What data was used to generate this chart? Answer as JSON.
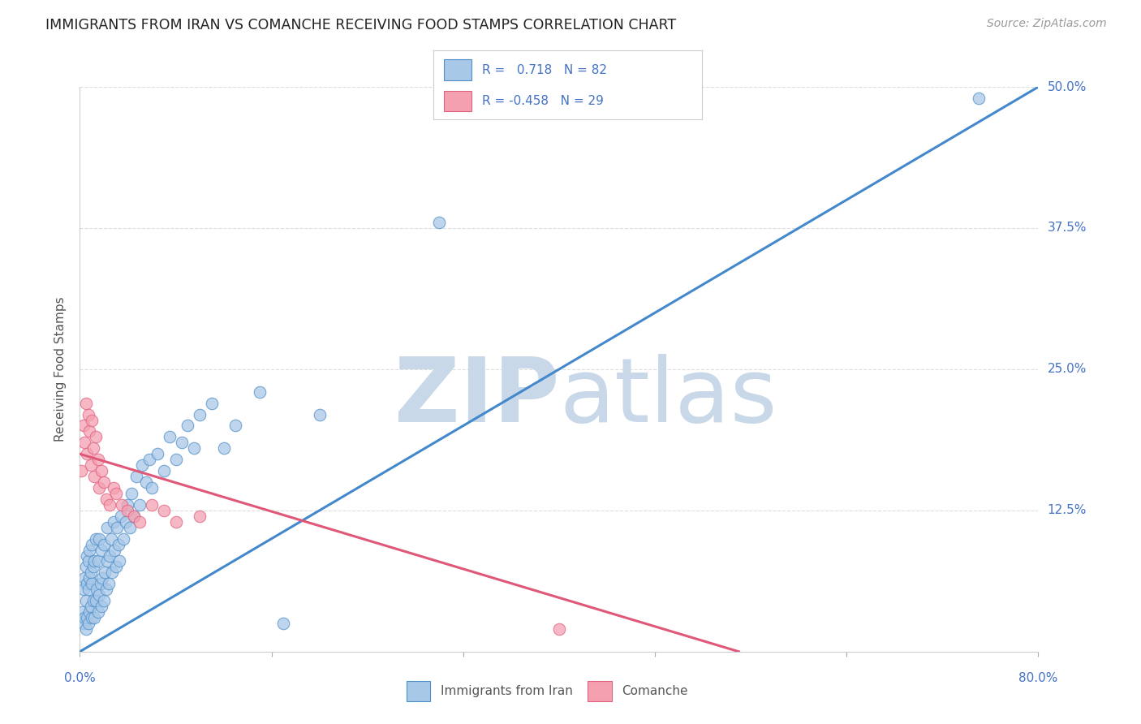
{
  "title": "IMMIGRANTS FROM IRAN VS COMANCHE RECEIVING FOOD STAMPS CORRELATION CHART",
  "source": "Source: ZipAtlas.com",
  "ylabel": "Receiving Food Stamps",
  "blue_color": "#a8c8e8",
  "pink_color": "#f4a0b0",
  "blue_edge_color": "#5090c8",
  "pink_edge_color": "#e06080",
  "blue_line_color": "#4488cc",
  "pink_line_color": "#e05878",
  "watermark_zip_color": "#c8d8e8",
  "watermark_atlas_color": "#c8d8e8",
  "background_color": "#ffffff",
  "title_color": "#222222",
  "axis_label_color": "#4472c4",
  "grid_color": "#dddddd",
  "blue_R": 0.718,
  "blue_N": 82,
  "pink_R": -0.458,
  "pink_N": 29,
  "xlim": [
    0.0,
    0.8
  ],
  "ylim": [
    0.0,
    0.5
  ],
  "xtick_positions": [
    0.0,
    0.16,
    0.32,
    0.48,
    0.64,
    0.8
  ],
  "ytick_positions": [
    0.0,
    0.125,
    0.25,
    0.375,
    0.5
  ],
  "blue_line_x0": 0.0,
  "blue_line_y0": 0.0,
  "blue_line_x1": 0.8,
  "blue_line_y1": 0.5,
  "pink_line_x0": 0.0,
  "pink_line_y0": 0.175,
  "pink_line_x1": 0.55,
  "pink_line_y1": 0.0,
  "blue_scatter_x": [
    0.002,
    0.003,
    0.003,
    0.004,
    0.004,
    0.005,
    0.005,
    0.005,
    0.006,
    0.006,
    0.006,
    0.007,
    0.007,
    0.007,
    0.008,
    0.008,
    0.008,
    0.009,
    0.009,
    0.01,
    0.01,
    0.01,
    0.011,
    0.011,
    0.012,
    0.012,
    0.013,
    0.013,
    0.014,
    0.015,
    0.015,
    0.016,
    0.016,
    0.017,
    0.018,
    0.018,
    0.019,
    0.02,
    0.02,
    0.021,
    0.022,
    0.023,
    0.023,
    0.024,
    0.025,
    0.026,
    0.027,
    0.028,
    0.029,
    0.03,
    0.031,
    0.032,
    0.033,
    0.034,
    0.036,
    0.038,
    0.04,
    0.042,
    0.043,
    0.045,
    0.047,
    0.05,
    0.052,
    0.055,
    0.058,
    0.06,
    0.065,
    0.07,
    0.075,
    0.08,
    0.085,
    0.09,
    0.095,
    0.1,
    0.11,
    0.12,
    0.13,
    0.15,
    0.17,
    0.2,
    0.3,
    0.75
  ],
  "blue_scatter_y": [
    0.035,
    0.025,
    0.055,
    0.03,
    0.065,
    0.02,
    0.045,
    0.075,
    0.03,
    0.06,
    0.085,
    0.025,
    0.055,
    0.08,
    0.035,
    0.065,
    0.09,
    0.04,
    0.07,
    0.03,
    0.06,
    0.095,
    0.045,
    0.075,
    0.03,
    0.08,
    0.045,
    0.1,
    0.055,
    0.035,
    0.08,
    0.05,
    0.1,
    0.06,
    0.04,
    0.09,
    0.065,
    0.045,
    0.095,
    0.07,
    0.055,
    0.11,
    0.08,
    0.06,
    0.085,
    0.1,
    0.07,
    0.115,
    0.09,
    0.075,
    0.11,
    0.095,
    0.08,
    0.12,
    0.1,
    0.115,
    0.13,
    0.11,
    0.14,
    0.12,
    0.155,
    0.13,
    0.165,
    0.15,
    0.17,
    0.145,
    0.175,
    0.16,
    0.19,
    0.17,
    0.185,
    0.2,
    0.18,
    0.21,
    0.22,
    0.18,
    0.2,
    0.23,
    0.025,
    0.21,
    0.38,
    0.49
  ],
  "pink_scatter_x": [
    0.001,
    0.003,
    0.004,
    0.005,
    0.006,
    0.007,
    0.008,
    0.009,
    0.01,
    0.011,
    0.012,
    0.013,
    0.015,
    0.016,
    0.018,
    0.02,
    0.022,
    0.025,
    0.028,
    0.03,
    0.035,
    0.04,
    0.045,
    0.05,
    0.06,
    0.07,
    0.08,
    0.1,
    0.4
  ],
  "pink_scatter_y": [
    0.16,
    0.2,
    0.185,
    0.22,
    0.175,
    0.21,
    0.195,
    0.165,
    0.205,
    0.18,
    0.155,
    0.19,
    0.17,
    0.145,
    0.16,
    0.15,
    0.135,
    0.13,
    0.145,
    0.14,
    0.13,
    0.125,
    0.12,
    0.115,
    0.13,
    0.125,
    0.115,
    0.12,
    0.02
  ]
}
